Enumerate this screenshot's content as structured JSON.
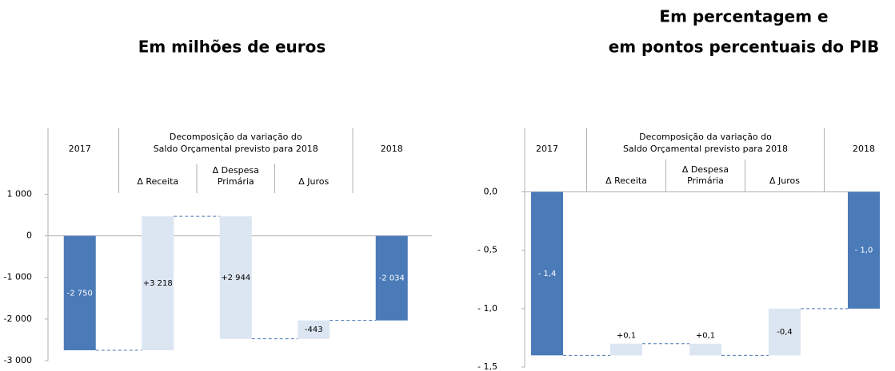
{
  "chart_data": [
    {
      "type": "waterfall",
      "title": [
        "Em milhões de euros"
      ],
      "group_label": [
        "Decomposição da variação do",
        "Saldo Orçamental previsto para 2018"
      ],
      "categories": [
        [
          "2017"
        ],
        [
          "Δ Receita"
        ],
        [
          "Δ Despesa",
          "Primária"
        ],
        [
          "Δ Juros"
        ],
        [
          "2018"
        ]
      ],
      "values": [
        -2750,
        3218,
        2944,
        -443,
        -2034
      ],
      "value_labels": [
        "-2 750",
        "+3 218",
        "+2 944",
        "-443",
        "-2 034"
      ],
      "measure": [
        "total",
        "relative",
        "relative_inverse",
        "relative_inverse",
        "total"
      ],
      "colors": [
        "#4a7ab8",
        "#dce6f2",
        "#dce6f2",
        "#dce6f2",
        "#4a7ab8"
      ],
      "connector_color": "#4a7ab8",
      "ylim": [
        -3000,
        2600
      ],
      "yticks": [
        {
          "value": 1000,
          "label": "1 000"
        },
        0,
        {
          "value": -1000,
          "label": "-1 000"
        },
        {
          "value": -2000,
          "label": "-2 000"
        },
        {
          "value": -3000,
          "label": "-3 000"
        }
      ]
    },
    {
      "type": "waterfall",
      "title": [
        "Em percentagem e",
        "em pontos percentuais do PIB"
      ],
      "group_label": [
        "Decomposição da variação do",
        "Saldo Orçamental previsto para 2018"
      ],
      "categories": [
        [
          "2017"
        ],
        [
          "Δ Receita"
        ],
        [
          "Δ Despesa",
          "Primária"
        ],
        [
          "Δ Juros"
        ],
        [
          "2018"
        ]
      ],
      "values": [
        -1.4,
        0.1,
        0.1,
        -0.4,
        -1.0
      ],
      "value_labels": [
        "- 1,4",
        "+0,1",
        "+0,1",
        "-0,4",
        "- 1,0"
      ],
      "measure": [
        "total",
        "relative",
        "relative_inverse",
        "relative_inverse",
        "total"
      ],
      "colors": [
        "#4a7ab8",
        "#dce6f2",
        "#dce6f2",
        "#dce6f2",
        "#4a7ab8"
      ],
      "connector_color": "#4a7ab8",
      "ylim": [
        -1.5,
        0.55
      ],
      "yticks": [
        {
          "value": 0,
          "label": "0,0"
        },
        {
          "value": -0.5,
          "label": "- 0,5"
        },
        {
          "value": -1,
          "label": "- 1,0"
        },
        {
          "value": -1.5,
          "label": "- 1,5"
        }
      ]
    }
  ]
}
